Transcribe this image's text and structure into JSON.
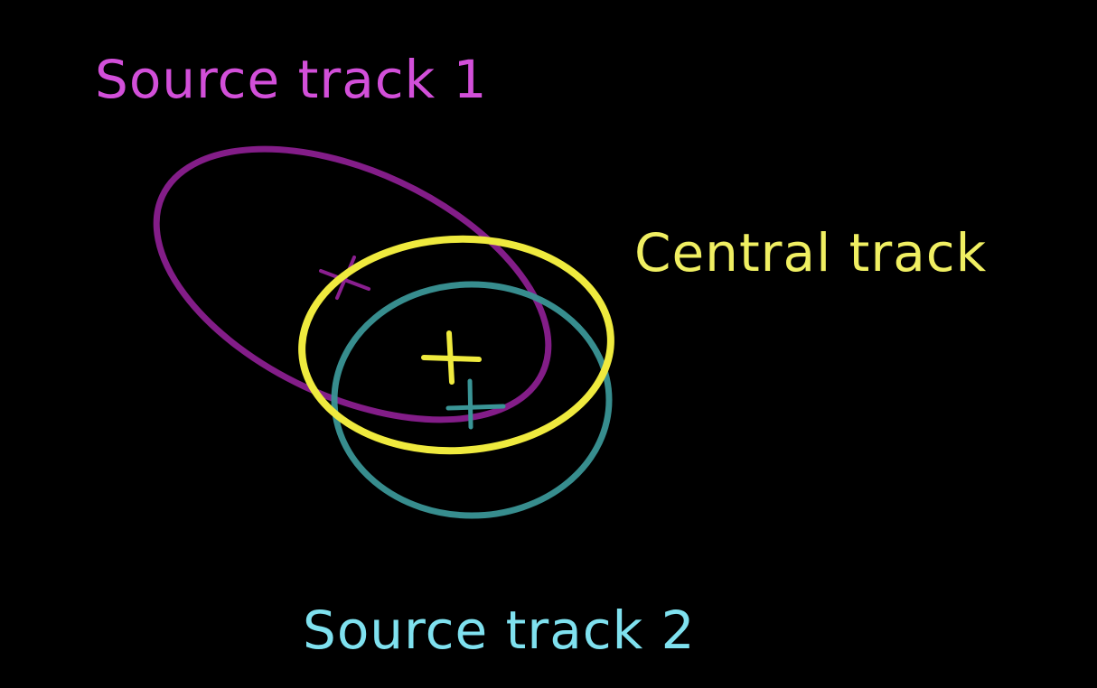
{
  "labels": {
    "source_track_1": "Source track 1",
    "central_track": "Central track",
    "source_track_2": "Source track 2"
  },
  "colors": {
    "background": "#000000",
    "source_track_1": "#d24fd9",
    "source_track_1_ellipse": "#8a1f8f",
    "central_track": "#f0ef62",
    "central_track_ellipse": "#efea3e",
    "source_track_2": "#7fe1ef",
    "source_track_2_ellipse": "#3a9596"
  }
}
